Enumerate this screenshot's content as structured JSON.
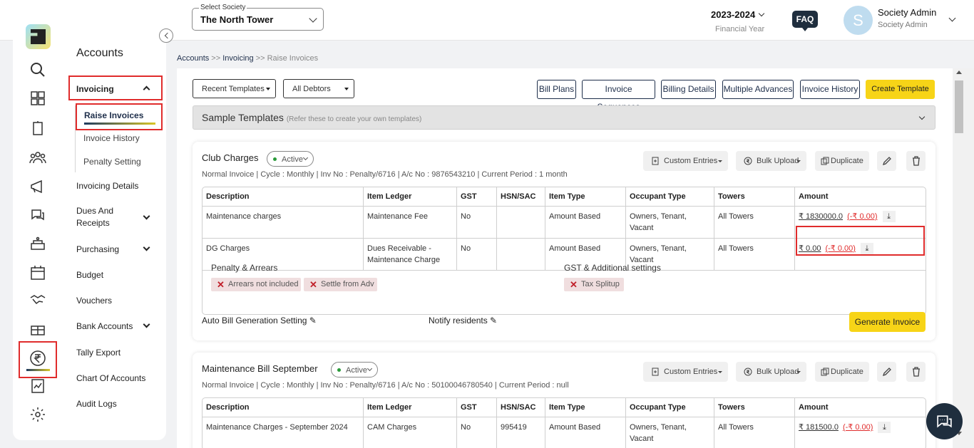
{
  "header": {
    "society_label": "Select Society",
    "society_value": "The North Tower",
    "fy_year": "2023-2024",
    "fy_label": "Financial Year",
    "faq": "FAQ",
    "avatar_initial": "S",
    "user_name": "Society Admin",
    "user_role": "Society Admin"
  },
  "sidebar": {
    "section_title": "Accounts",
    "invoicing": "Invoicing",
    "raise_invoices": "Raise Invoices",
    "invoice_history": "Invoice History",
    "penalty_setting": "Penalty Setting",
    "items": [
      {
        "label": "Invoicing Details"
      },
      {
        "label": "Dues And Receipts"
      },
      {
        "label": "Purchasing"
      },
      {
        "label": "Budget"
      },
      {
        "label": "Vouchers"
      },
      {
        "label": "Bank Accounts"
      },
      {
        "label": "Tally Export"
      },
      {
        "label": "Chart Of Accounts"
      },
      {
        "label": "Audit Logs"
      }
    ]
  },
  "breadcrumb": {
    "a": "Accounts",
    "sep1": " >> ",
    "b": "Invoicing",
    "c": " >> Raise Invoices"
  },
  "toolbar": {
    "recent_templates": "Recent Templates",
    "all_debtors": "All Debtors",
    "bill_plans": "Bill Plans",
    "invoice_sequences": "Invoice Sequences",
    "billing_details": "Billing Details",
    "multiple_advances": "Multiple Advances",
    "invoice_history": "Invoice History",
    "create_template": "Create Template"
  },
  "sample": {
    "title": "Sample Templates",
    "note": "(Refer these to create your own templates)"
  },
  "actions": {
    "custom_entries": "Custom Entries",
    "bulk_upload": "Bulk Upload",
    "duplicate": "Duplicate"
  },
  "table_headers": [
    "Description",
    "Item Ledger",
    "GST",
    "HSN/SAC",
    "Item Type",
    "Occupant Type",
    "Towers",
    "Amount"
  ],
  "card1": {
    "title": "Club Charges",
    "status": "Active",
    "meta": "Normal Invoice | Cycle : Monthly | Inv No : Penalty/6716 | A/c No : 9876543210 | Current Period : 1 month",
    "rows": [
      {
        "desc": "Maintenance charges",
        "ledger": "Maintenance Fee",
        "gst": "No",
        "hsn": "",
        "type": "Amount Based",
        "occupant": "Owners, Tenant, Vacant",
        "towers": "All Towers",
        "amount": "₹ 1830000.0",
        "neg": "(-₹ 0.00)"
      },
      {
        "desc": "DG Charges",
        "ledger": "Dues Receivable - Maintenance Charge",
        "gst": "No",
        "hsn": "",
        "type": "Amount Based",
        "occupant": "Owners, Tenant, Vacant",
        "towers": "All Towers",
        "amount": "₹ 0.00",
        "neg": "(-₹ 0.00)"
      }
    ],
    "penalty_title": "Penalty & Arrears",
    "tag1": "Arrears not included",
    "tag2": "Settle from Adv",
    "gst_title": "GST & Additional settings",
    "tag3": "Tax Splitup",
    "auto_bill": "Auto Bill Generation Setting",
    "notify": "Notify residents",
    "generate": "Generate Invoice"
  },
  "card2": {
    "title": "Maintenance Bill September",
    "status": "Active",
    "meta": "Normal Invoice | Cycle : Monthly | Inv No : Penalty/6716 | A/c No : 50100046780540 | Current Period : null",
    "rows": [
      {
        "desc": "Maintenance Charges - September 2024",
        "ledger": "CAM Charges",
        "gst": "No",
        "hsn": "995419",
        "type": "Amount Based",
        "occupant": "Owners, Tenant, Vacant",
        "towers": "All Towers",
        "amount": "₹ 181500.0",
        "neg": "(-₹ 0.00)"
      }
    ]
  }
}
